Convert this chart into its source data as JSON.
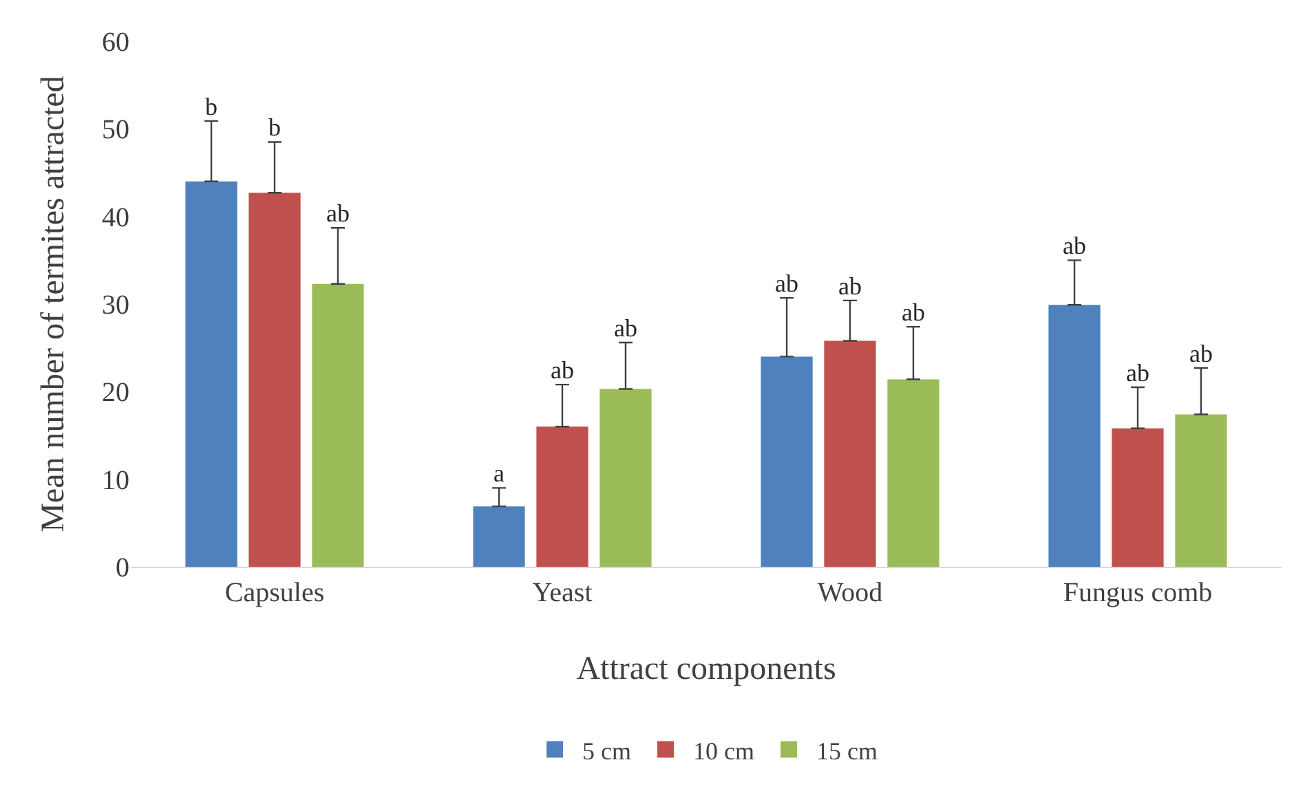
{
  "chart_data": {
    "type": "bar",
    "xlabel": "Attract components",
    "ylabel": "Mean number of termites attracted",
    "categories": [
      "Capsules",
      "Yeast",
      "Wood",
      "Fungus comb"
    ],
    "series": [
      {
        "name": "5 cm",
        "color": "#4f81bd",
        "values": [
          44,
          6.9,
          24,
          29.9
        ],
        "errors": [
          [
            44,
            50.9
          ],
          [
            6.9,
            9
          ],
          [
            24,
            30.7
          ],
          [
            29.9,
            35
          ]
        ],
        "value_labels": [
          "b",
          "a",
          "ab",
          "ab"
        ]
      },
      {
        "name": "10 cm",
        "color": "#c0504d",
        "values": [
          42.7,
          16,
          25.8,
          15.8
        ],
        "errors": [
          [
            42.7,
            48.5
          ],
          [
            16,
            20.8
          ],
          [
            25.8,
            30.4
          ],
          [
            15.8,
            20.5
          ]
        ],
        "value_labels": [
          "b",
          "ab",
          "ab",
          "ab"
        ]
      },
      {
        "name": "15 cm",
        "color": "#9bbb59",
        "values": [
          32.3,
          20.3,
          21.4,
          17.4
        ],
        "errors": [
          [
            32.3,
            38.7
          ],
          [
            20.3,
            25.6
          ],
          [
            21.4,
            27.4
          ],
          [
            17.4,
            22.7
          ]
        ],
        "value_labels": [
          "ab",
          "ab",
          "ab",
          "ab"
        ]
      }
    ],
    "ylim": [
      0,
      60
    ],
    "yticks": [
      0,
      10,
      20,
      30,
      40,
      50,
      60
    ],
    "grid": false,
    "legend": "bottom"
  }
}
